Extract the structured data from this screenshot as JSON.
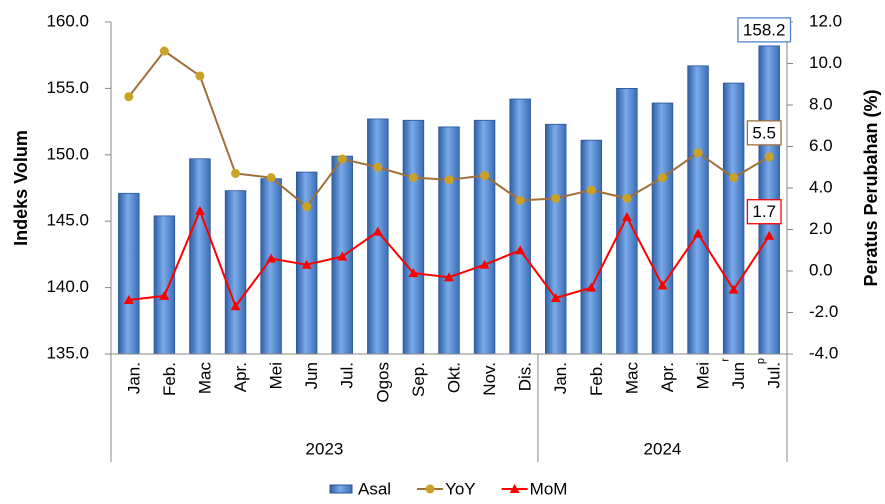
{
  "chart_data": {
    "type": "bar-line",
    "categories": [
      "Jan.",
      "Feb.",
      "Mac",
      "Apr.",
      "Mei",
      "Jun",
      "Jul.",
      "Ogos",
      "Sep.",
      "Okt.",
      "Nov.",
      "Dis.",
      "Jan.",
      "Feb.",
      "Mac",
      "Apr.",
      "Mei",
      "Jun",
      "Jul."
    ],
    "category_notes": [
      null,
      null,
      null,
      null,
      null,
      null,
      null,
      null,
      null,
      null,
      null,
      null,
      null,
      null,
      null,
      null,
      null,
      "r",
      "p"
    ],
    "groups": [
      {
        "label": "2023",
        "span": 12
      },
      {
        "label": "2024",
        "span": 7
      }
    ],
    "y_label": "Indeks Volum",
    "y2_label": "Peratus Perubahan (%)",
    "ylim": [
      135,
      160
    ],
    "yticks": [
      {
        "value": 135,
        "label": "135.0"
      },
      {
        "value": 140,
        "label": "140.0"
      },
      {
        "value": 145,
        "label": "145.0"
      },
      {
        "value": 150,
        "label": "150.0"
      },
      {
        "value": 155,
        "label": "155.0"
      },
      {
        "value": 160,
        "label": "160.0"
      }
    ],
    "y2lim": [
      -4,
      12
    ],
    "y2ticks": [
      {
        "value": -4,
        "label": "-4.0"
      },
      {
        "value": -2,
        "label": "-2.0"
      },
      {
        "value": 0,
        "label": "0.0"
      },
      {
        "value": 2,
        "label": "2.0"
      },
      {
        "value": 4,
        "label": "4.0"
      },
      {
        "value": 6,
        "label": "6.0"
      },
      {
        "value": 8,
        "label": "8.0"
      },
      {
        "value": 10,
        "label": "10.0"
      },
      {
        "value": 12,
        "label": "12.0"
      }
    ],
    "series": [
      {
        "name": "Asal",
        "type": "bar",
        "color": "#4f86cf",
        "values": [
          147.1,
          145.4,
          149.7,
          147.3,
          148.2,
          148.7,
          149.9,
          152.7,
          152.6,
          152.1,
          152.6,
          154.2,
          152.3,
          151.1,
          155.0,
          153.9,
          156.7,
          155.4,
          158.2
        ]
      },
      {
        "name": "YoY",
        "type": "line",
        "axis": "y2",
        "color": "#a0703a",
        "marker_color": "#c9a227",
        "marker": "circle",
        "values": [
          8.4,
          10.6,
          9.4,
          4.7,
          4.5,
          3.1,
          5.4,
          5.0,
          4.5,
          4.4,
          4.6,
          3.4,
          3.5,
          3.9,
          3.5,
          4.5,
          5.7,
          4.5,
          5.5
        ]
      },
      {
        "name": "MoM",
        "type": "line",
        "axis": "y2",
        "color": "#ff0000",
        "marker_color": "#ff0000",
        "marker": "triangle",
        "values": [
          -1.4,
          -1.2,
          2.9,
          -1.7,
          0.6,
          0.3,
          0.7,
          1.9,
          -0.1,
          -0.3,
          0.3,
          1.0,
          -1.3,
          -0.8,
          2.6,
          -0.7,
          1.8,
          -0.9,
          1.7
        ]
      }
    ]
  }
}
